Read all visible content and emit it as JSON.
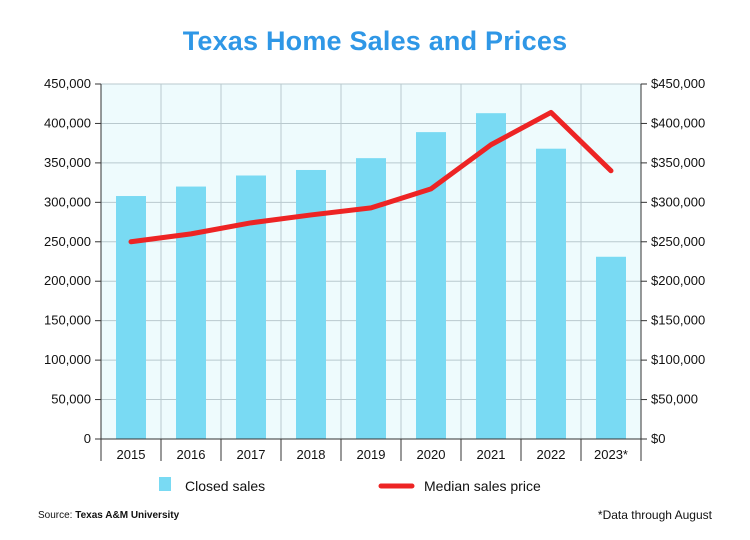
{
  "title": "Texas Home Sales and Prices",
  "source_label": "Source:",
  "source_name": "Texas A&M University",
  "footnote": "*Data through August",
  "colors": {
    "title": "#2f97e6",
    "bars": "#79daf3",
    "line": "#ed2424",
    "plot_bg": "#eefbfd",
    "grid": "#b9c9ce"
  },
  "chart_data": {
    "type": "bar",
    "title": "Texas Home Sales and Prices",
    "categories": [
      "2015",
      "2016",
      "2017",
      "2018",
      "2019",
      "2020",
      "2021",
      "2022",
      "2023*"
    ],
    "series": [
      {
        "name": "Closed sales",
        "type": "bar",
        "axis": "left",
        "values": [
          308000,
          320000,
          334000,
          341000,
          356000,
          389000,
          413000,
          368000,
          231000
        ]
      },
      {
        "name": "Median sales price",
        "type": "line",
        "axis": "right",
        "values": [
          250000,
          260000,
          274000,
          284000,
          293000,
          317000,
          373000,
          414000,
          340000
        ]
      }
    ],
    "y_left": {
      "min": 0,
      "max": 450000,
      "ticks": [
        "0",
        "50,000",
        "100,000",
        "150,000",
        "200,000",
        "250,000",
        "300,000",
        "350,000",
        "400,000",
        "450,000"
      ]
    },
    "y_right": {
      "min": 0,
      "max": 450000,
      "ticks": [
        "$0",
        "$50,000",
        "$100,000",
        "$150,000",
        "$200,000",
        "$250,000",
        "$300,000",
        "$350,000",
        "$400,000",
        "$450,000"
      ]
    },
    "grid": true,
    "legend": {
      "position": "bottom",
      "items": [
        "Closed sales",
        "Median sales price"
      ]
    }
  }
}
